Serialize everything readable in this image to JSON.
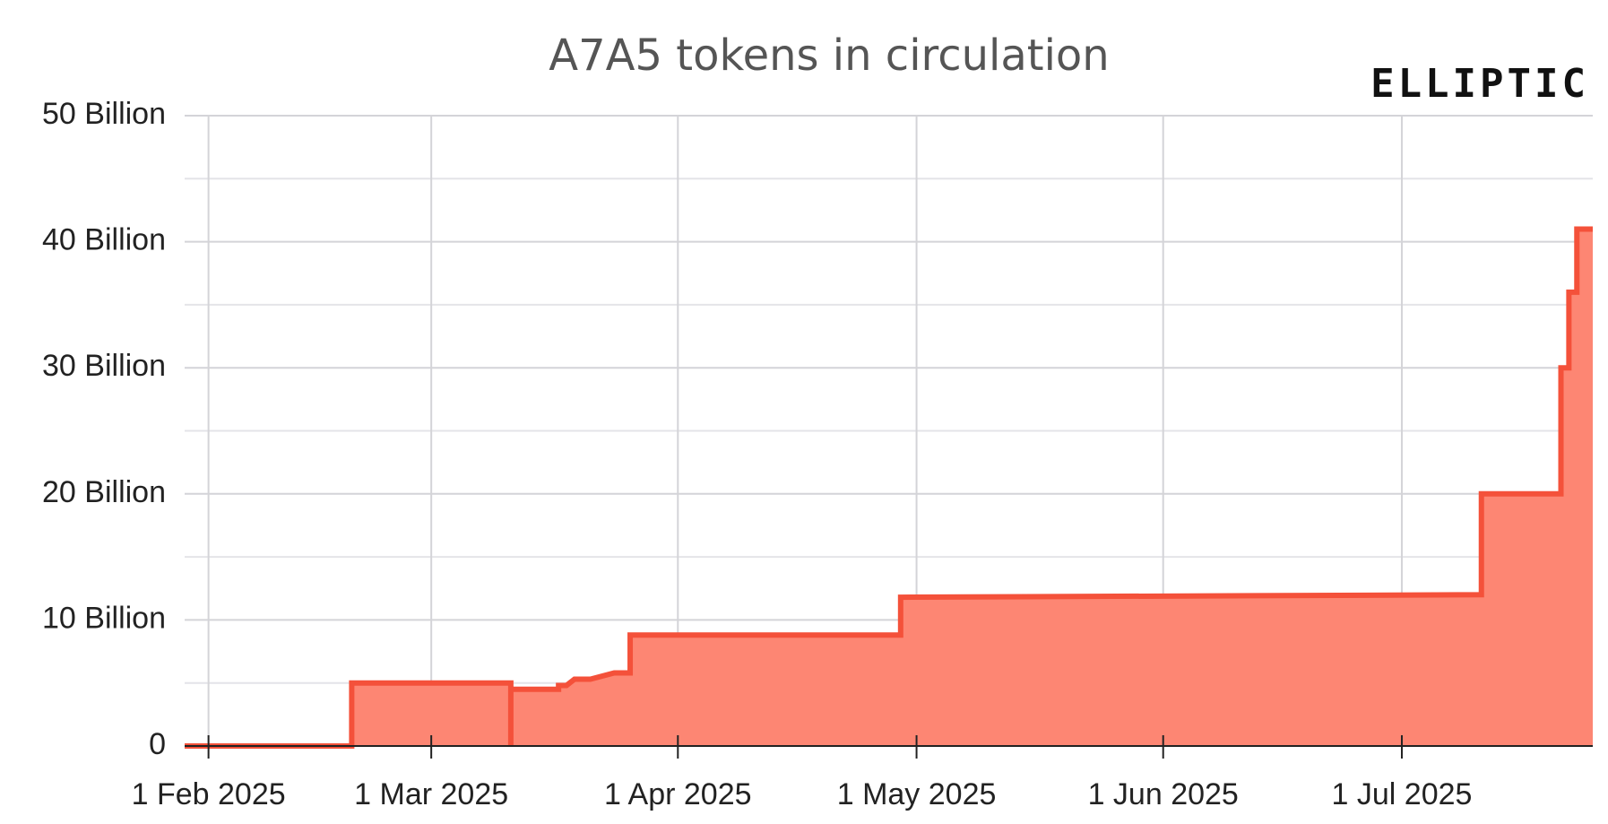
{
  "chart_data": {
    "type": "step-area",
    "title": "A7A5 tokens in circulation",
    "logo": "ELLIPTIC",
    "series": [
      {
        "name": "A7A5",
        "color": "#f4513a",
        "fill": "#fd8673",
        "x": [
          "2025-01-29",
          "2025-02-19",
          "2025-02-19",
          "2025-03-11",
          "2025-03-11",
          "2025-03-11",
          "2025-03-17",
          "2025-03-17",
          "2025-03-18",
          "2025-03-19",
          "2025-03-21",
          "2025-03-24",
          "2025-03-26",
          "2025-03-26",
          "2025-04-29",
          "2025-04-29",
          "2025-07-11",
          "2025-07-11",
          "2025-07-21",
          "2025-07-21",
          "2025-07-22",
          "2025-07-22",
          "2025-07-23",
          "2025-07-23",
          "2025-07-25"
        ],
        "values": [
          0,
          0,
          5,
          5,
          0,
          4.5,
          4.5,
          4.8,
          4.8,
          5.3,
          5.3,
          5.8,
          5.8,
          8.8,
          8.8,
          11.8,
          12,
          20,
          20,
          30,
          30,
          36,
          36,
          41,
          41
        ]
      }
    ],
    "xlim": [
      "2025-01-29",
      "2025-07-25"
    ],
    "xticks": [
      {
        "value": "2025-02-01",
        "label": "1 Feb 2025"
      },
      {
        "value": "2025-03-01",
        "label": "1 Mar 2025"
      },
      {
        "value": "2025-04-01",
        "label": "1 Apr 2025"
      },
      {
        "value": "2025-05-01",
        "label": "1 May 2025"
      },
      {
        "value": "2025-06-01",
        "label": "1 Jun 2025"
      },
      {
        "value": "2025-07-01",
        "label": "1 Jul 2025"
      }
    ],
    "ylim": [
      0,
      50
    ],
    "yticks": [
      0,
      {
        "value": 10,
        "label": "10 Billion"
      },
      {
        "value": 20,
        "label": "20 Billion"
      },
      {
        "value": 30,
        "label": "30 Billion"
      },
      {
        "value": 40,
        "label": "40 Billion"
      },
      {
        "value": 50,
        "label": "50 Billion"
      }
    ],
    "minor_yticks": [
      5,
      15,
      25,
      35,
      45
    ],
    "grid": true
  }
}
